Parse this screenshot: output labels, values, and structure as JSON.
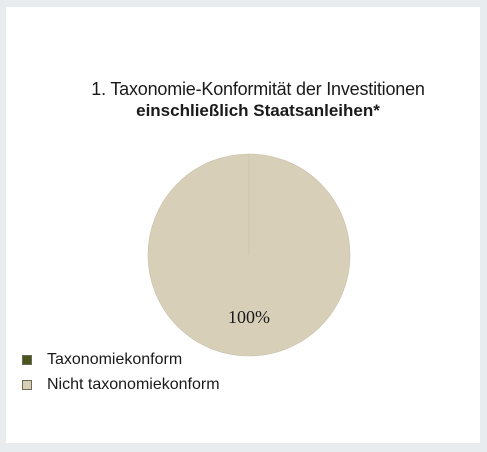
{
  "colors": {
    "compliant": "#4b5320",
    "non_compliant": "#d8cfb9",
    "outline": "#c8bfaa"
  },
  "chart_data": {
    "type": "pie",
    "title_line1": "1. Taxonomie-Konformität der Investitionen",
    "title_line2": "einschließlich Staatsanleihen*",
    "series": [
      {
        "name": "Taxonomiekonform",
        "value": 0,
        "color": "#4b5320"
      },
      {
        "name": "Nicht taxonomiekonform",
        "value": 100,
        "color": "#d8cfb9"
      }
    ],
    "slice_labels": [
      "",
      "100%"
    ],
    "legend_position": "bottom-left"
  }
}
